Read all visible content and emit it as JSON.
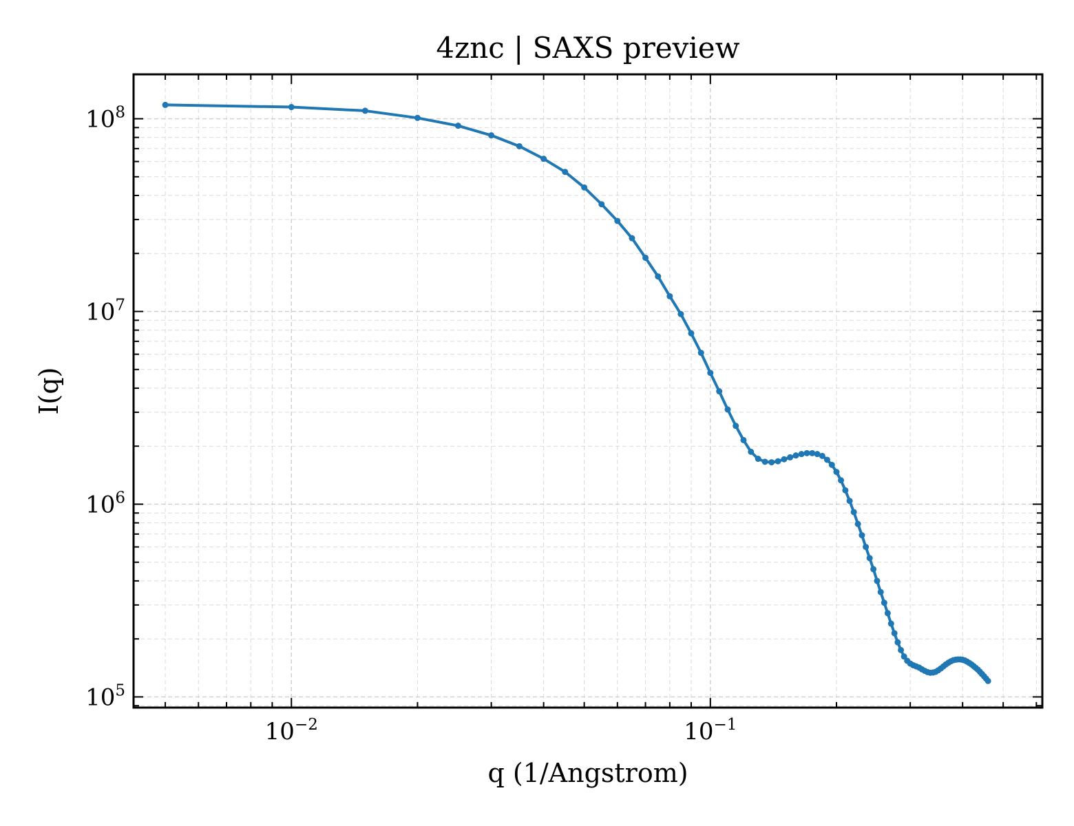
{
  "chart_data": {
    "type": "line",
    "title": "4znc | SAXS preview",
    "xlabel": "q (1/Angstrom)",
    "ylabel": "I(q)",
    "xscale": "log",
    "yscale": "log",
    "xlim": [
      0.0042,
      0.62
    ],
    "ylim": [
      88000,
      170000000
    ],
    "grid": true,
    "x_tick_labels": [
      {
        "value": 0.01,
        "base": "10",
        "exp": "−2"
      },
      {
        "value": 0.1,
        "base": "10",
        "exp": "−1"
      }
    ],
    "y_tick_labels": [
      {
        "value": 100000,
        "base": "10",
        "exp": "5"
      },
      {
        "value": 1000000,
        "base": "10",
        "exp": "6"
      },
      {
        "value": 10000000,
        "base": "10",
        "exp": "7"
      },
      {
        "value": 100000000,
        "base": "10",
        "exp": "8"
      }
    ],
    "line_color": "#1f77b4",
    "series": [
      {
        "points": [
          [
            0.005,
            118000000
          ],
          [
            0.01,
            115000000
          ],
          [
            0.015,
            110000000
          ],
          [
            0.02,
            101000000
          ],
          [
            0.025,
            92000000
          ],
          [
            0.03,
            82000000
          ],
          [
            0.035,
            72000000
          ],
          [
            0.04,
            62000000
          ],
          [
            0.045,
            53000000
          ],
          [
            0.05,
            44000000
          ],
          [
            0.055,
            36000000
          ],
          [
            0.06,
            29500000
          ],
          [
            0.065,
            24000000
          ],
          [
            0.07,
            19000000
          ],
          [
            0.075,
            15200000
          ],
          [
            0.08,
            12000000
          ],
          [
            0.085,
            9700000
          ],
          [
            0.09,
            7700000
          ],
          [
            0.095,
            6100000
          ],
          [
            0.1,
            4800000
          ],
          [
            0.105,
            3850000
          ],
          [
            0.11,
            3100000
          ],
          [
            0.115,
            2550000
          ],
          [
            0.12,
            2150000
          ],
          [
            0.125,
            1870000
          ],
          [
            0.13,
            1720000
          ],
          [
            0.135,
            1660000
          ],
          [
            0.14,
            1650000
          ],
          [
            0.145,
            1670000
          ],
          [
            0.15,
            1710000
          ],
          [
            0.155,
            1750000
          ],
          [
            0.16,
            1790000
          ],
          [
            0.165,
            1820000
          ],
          [
            0.17,
            1840000
          ],
          [
            0.175,
            1840000
          ],
          [
            0.18,
            1820000
          ],
          [
            0.185,
            1780000
          ],
          [
            0.19,
            1700000
          ],
          [
            0.195,
            1600000
          ],
          [
            0.2,
            1470000
          ],
          [
            0.205,
            1330000
          ],
          [
            0.21,
            1180000
          ],
          [
            0.215,
            1040000
          ],
          [
            0.22,
            910000
          ],
          [
            0.225,
            790000
          ],
          [
            0.23,
            690000
          ],
          [
            0.235,
            600000
          ],
          [
            0.24,
            525000
          ],
          [
            0.245,
            460000
          ],
          [
            0.25,
            400000
          ],
          [
            0.255,
            350000
          ],
          [
            0.26,
            308000
          ],
          [
            0.265,
            272000
          ],
          [
            0.27,
            240000
          ],
          [
            0.275,
            214000
          ],
          [
            0.28,
            192000
          ],
          [
            0.285,
            175000
          ],
          [
            0.29,
            162000
          ],
          [
            0.295,
            154000
          ],
          [
            0.3,
            149000
          ],
          [
            0.305,
            146000
          ],
          [
            0.31,
            144000
          ],
          [
            0.315,
            142000
          ],
          [
            0.32,
            139000
          ],
          [
            0.325,
            136500
          ],
          [
            0.33,
            134500
          ],
          [
            0.335,
            133500
          ],
          [
            0.34,
            133800
          ],
          [
            0.345,
            135000
          ],
          [
            0.35,
            137500
          ],
          [
            0.355,
            140500
          ],
          [
            0.36,
            144000
          ],
          [
            0.365,
            147500
          ],
          [
            0.37,
            150500
          ],
          [
            0.375,
            153000
          ],
          [
            0.38,
            155000
          ],
          [
            0.385,
            156000
          ],
          [
            0.39,
            156500
          ],
          [
            0.395,
            156500
          ],
          [
            0.4,
            155800
          ],
          [
            0.405,
            154500
          ],
          [
            0.41,
            152500
          ],
          [
            0.415,
            150000
          ],
          [
            0.42,
            147500
          ],
          [
            0.425,
            144500
          ],
          [
            0.43,
            141500
          ],
          [
            0.435,
            138500
          ],
          [
            0.44,
            135000
          ],
          [
            0.445,
            131500
          ],
          [
            0.45,
            128000
          ],
          [
            0.455,
            124500
          ],
          [
            0.46,
            121000
          ]
        ]
      }
    ]
  }
}
